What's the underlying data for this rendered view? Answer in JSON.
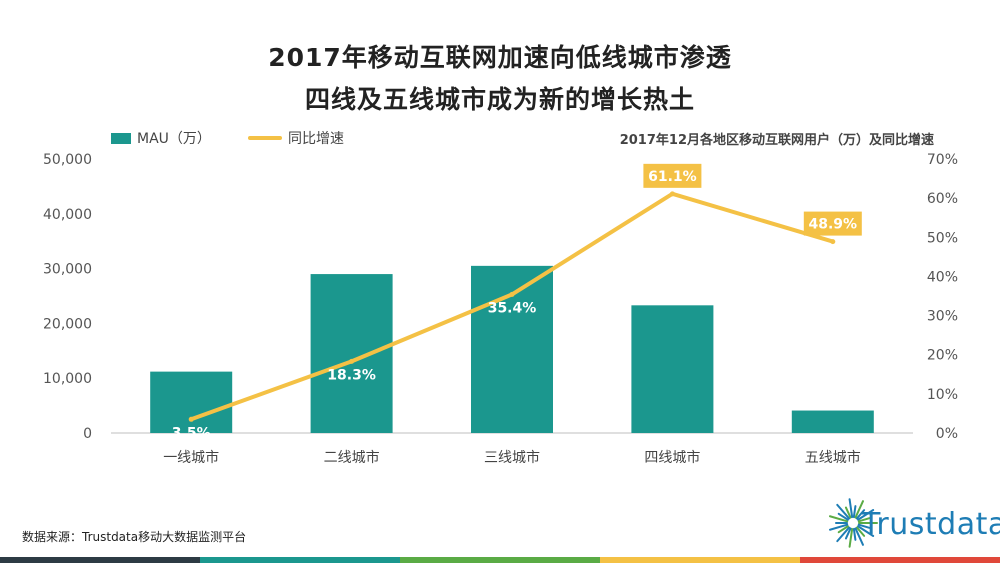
{
  "header": {
    "title_line1": "2017年移动互联网加速向低线城市渗透",
    "title_line2": "四线及五线城市成为新的增长热土"
  },
  "legend": {
    "bar_label": "MAU（万）",
    "line_label": "同比增速"
  },
  "subtitle": "2017年12月各地区移动互联网用户（万）及同比增速",
  "footer": {
    "source": "数据来源：Trustdata移动大数据监测平台",
    "logo_text": "Trustdata"
  },
  "colors": {
    "bar": "#1b978e",
    "line": "#f4c145",
    "label_box": "#f4c145",
    "stripes": [
      "#2d3b44",
      "#1b978e",
      "#5aab45",
      "#f4c145",
      "#e0483a"
    ]
  },
  "chart_data": {
    "type": "bar",
    "categories": [
      "一线城市",
      "二线城市",
      "三线城市",
      "四线城市",
      "五线城市"
    ],
    "series": [
      {
        "name": "MAU（万）",
        "type": "bar",
        "axis": "left",
        "values": [
          11200,
          29000,
          30500,
          23300,
          4100
        ]
      },
      {
        "name": "同比增速",
        "type": "line",
        "axis": "right",
        "values": [
          3.5,
          18.3,
          35.4,
          61.1,
          48.9
        ],
        "labels": [
          "3.5%",
          "18.3%",
          "35.4%",
          "61.1%",
          "48.9%"
        ]
      }
    ],
    "y_left": {
      "ylim": [
        0,
        50000
      ],
      "ticks": [
        0,
        10000,
        20000,
        30000,
        40000,
        50000
      ],
      "tick_labels": [
        "0",
        "10,000",
        "20,000",
        "30,000",
        "40,000",
        "50,000"
      ]
    },
    "y_right": {
      "ylim": [
        0,
        70
      ],
      "ticks": [
        0,
        10,
        20,
        30,
        40,
        50,
        60,
        70
      ],
      "tick_labels": [
        "0%",
        "10%",
        "20%",
        "30%",
        "40%",
        "50%",
        "60%",
        "70%"
      ]
    },
    "grid": false,
    "legend_position": "top-left"
  }
}
